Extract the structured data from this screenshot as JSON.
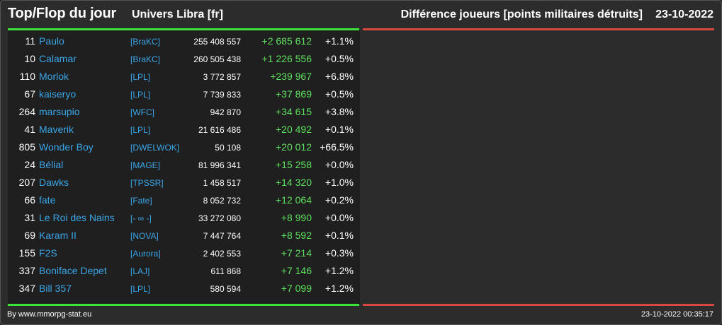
{
  "header": {
    "title": "Top/Flop du jour",
    "universe": "Univers Libra [fr]",
    "subtitle": "Différence joueurs [points militaires détruits]",
    "date": "23-10-2022"
  },
  "colors": {
    "top": "#3de33d",
    "flop": "#d9483f",
    "link": "#3aa6e8",
    "positive": "#5ee05e"
  },
  "rows": [
    {
      "rank": "11",
      "name": "Paulo",
      "ally": "[BraKC]",
      "points": "255 408 557",
      "delta": "+2 685 612",
      "pct": "+1.1%"
    },
    {
      "rank": "10",
      "name": "Calamar",
      "ally": "[BraKC]",
      "points": "260 505 438",
      "delta": "+1 226 556",
      "pct": "+0.5%"
    },
    {
      "rank": "110",
      "name": "Morlok",
      "ally": "[LPL]",
      "points": "3 772 857",
      "delta": "+239 967",
      "pct": "+6.8%"
    },
    {
      "rank": "67",
      "name": "kaiseryo",
      "ally": "[LPL]",
      "points": "7 739 833",
      "delta": "+37 869",
      "pct": "+0.5%"
    },
    {
      "rank": "264",
      "name": "marsupio",
      "ally": "[WFC]",
      "points": "942 870",
      "delta": "+34 615",
      "pct": "+3.8%"
    },
    {
      "rank": "41",
      "name": "Maverik",
      "ally": "[LPL]",
      "points": "21 616 486",
      "delta": "+20 492",
      "pct": "+0.1%"
    },
    {
      "rank": "805",
      "name": "Wonder Boy",
      "ally": "[DWELWOK]",
      "points": "50 108",
      "delta": "+20 012",
      "pct": "+66.5%"
    },
    {
      "rank": "24",
      "name": "Bélial",
      "ally": "[MAGE]",
      "points": "81 996 341",
      "delta": "+15 258",
      "pct": "+0.0%"
    },
    {
      "rank": "207",
      "name": "Dawks",
      "ally": "[TPSSR]",
      "points": "1 458 517",
      "delta": "+14 320",
      "pct": "+1.0%"
    },
    {
      "rank": "66",
      "name": "fate",
      "ally": "[Fate]",
      "points": "8 052 732",
      "delta": "+12 064",
      "pct": "+0.2%"
    },
    {
      "rank": "31",
      "name": "Le Roi des Nains",
      "ally": "[- ∞ -]",
      "points": "33 272 080",
      "delta": "+8 990",
      "pct": "+0.0%"
    },
    {
      "rank": "69",
      "name": "Karam II",
      "ally": "[NOVA]",
      "points": "7 447 764",
      "delta": "+8 592",
      "pct": "+0.1%"
    },
    {
      "rank": "155",
      "name": "F2S",
      "ally": "[Aurora]",
      "points": "2 402 553",
      "delta": "+7 214",
      "pct": "+0.3%"
    },
    {
      "rank": "337",
      "name": "Boniface Depet",
      "ally": "[LAJ]",
      "points": "611 868",
      "delta": "+7 146",
      "pct": "+1.2%"
    },
    {
      "rank": "347",
      "name": "Bill 357",
      "ally": "[LPL]",
      "points": "580 594",
      "delta": "+7 099",
      "pct": "+1.2%"
    }
  ],
  "footer": {
    "credit": "By www.mmorpg-stat.eu",
    "timestamp": "23-10-2022 00:35:17"
  }
}
